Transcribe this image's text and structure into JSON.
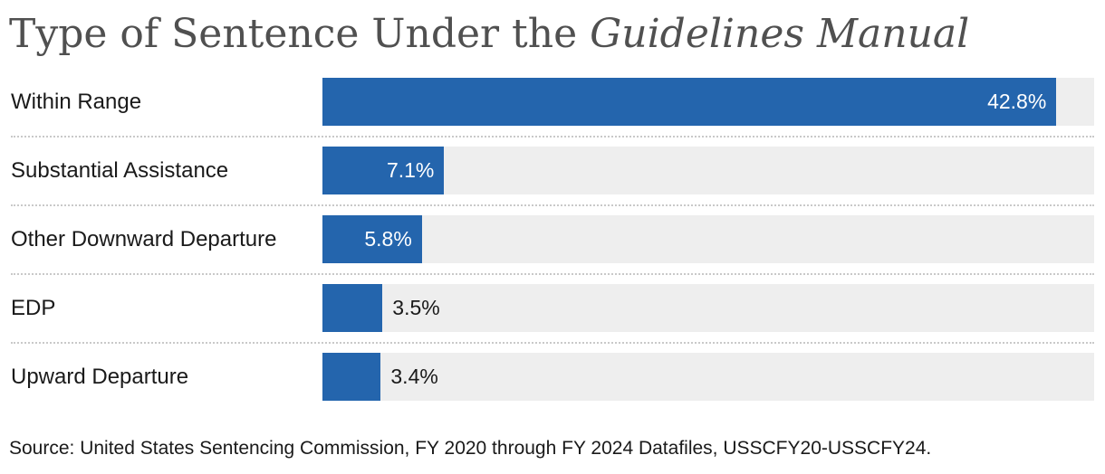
{
  "title": {
    "prefix": "Type of Sentence Under the ",
    "emphasis": "Guidelines Manual"
  },
  "chart_data": {
    "type": "bar",
    "orientation": "horizontal",
    "title": "Type of Sentence Under the Guidelines Manual",
    "categories": [
      "Within Range",
      "Substantial Assistance",
      "Other Downward Departure",
      "EDP",
      "Upward Departure"
    ],
    "values": [
      42.8,
      7.1,
      5.8,
      3.5,
      3.4
    ],
    "value_labels": [
      "42.8%",
      "7.1%",
      "5.8%",
      "3.5%",
      "3.4%"
    ],
    "xlim": [
      0,
      45
    ],
    "grid": false,
    "bar_color": "#2465ad",
    "track_color": "#eeeeee"
  },
  "source": "Source: United States Sentencing Commission, FY 2020 through FY 2024 Datafiles, USSCFY20-USSCFY24."
}
